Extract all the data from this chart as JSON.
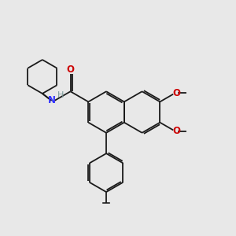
{
  "background_color": "#e8e8e8",
  "bond_color": "#1a1a1a",
  "atom_colors": {
    "N": "#3333ff",
    "O": "#cc0000",
    "H": "#7a9a9a",
    "C": "#1a1a1a"
  },
  "figsize": [
    3.0,
    3.0
  ],
  "dpi": 100
}
